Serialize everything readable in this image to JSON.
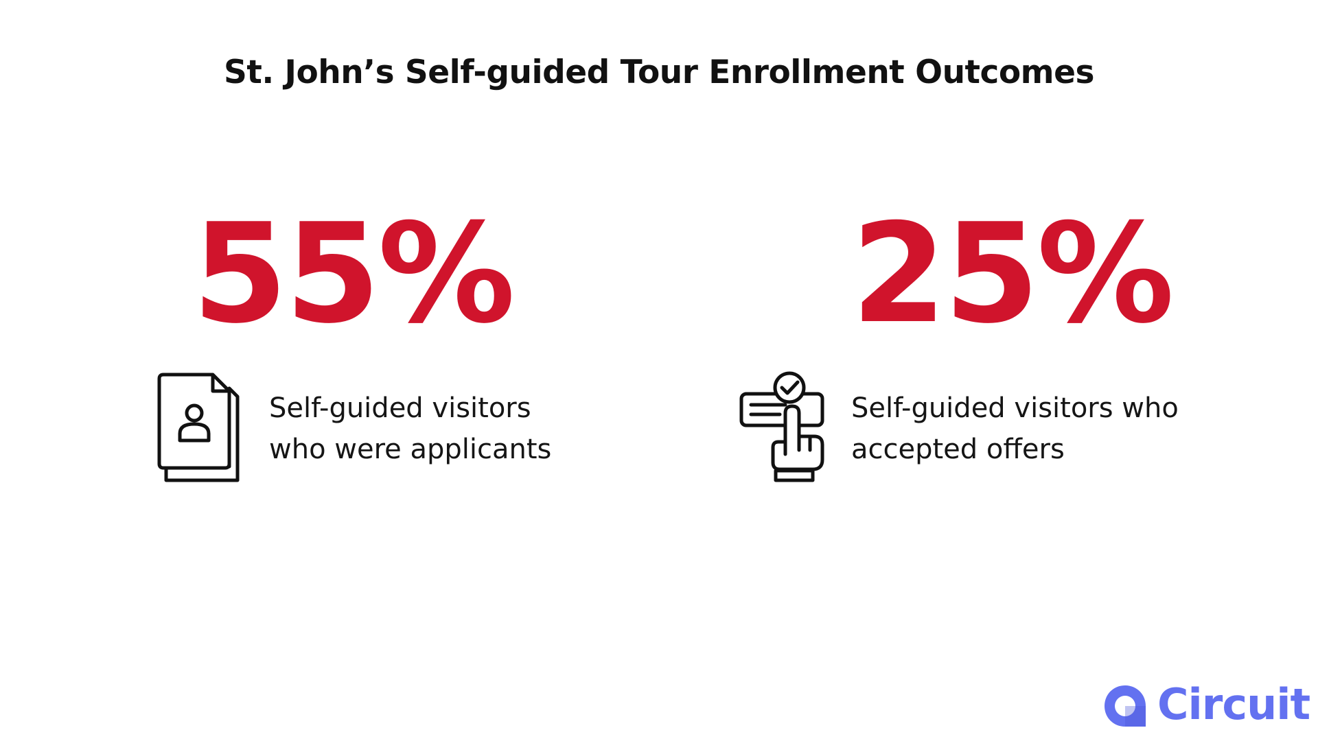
{
  "title": "St. John’s Self-guided Tour Enrollment Outcomes",
  "stats": [
    {
      "value": "55%",
      "line1": "Self-guided visitors",
      "line2": "who were applicants",
      "icon": "applicant-document-icon"
    },
    {
      "value": "25%",
      "line1": "Self-guided visitors who",
      "line2": "accepted offers",
      "icon": "offer-accepted-hand-icon"
    }
  ],
  "colors": {
    "accent": "#d0142c",
    "text": "#111111",
    "brand": "#6371f0"
  },
  "brand": {
    "name": "Circuit",
    "icon": "circuit-logo-icon"
  }
}
